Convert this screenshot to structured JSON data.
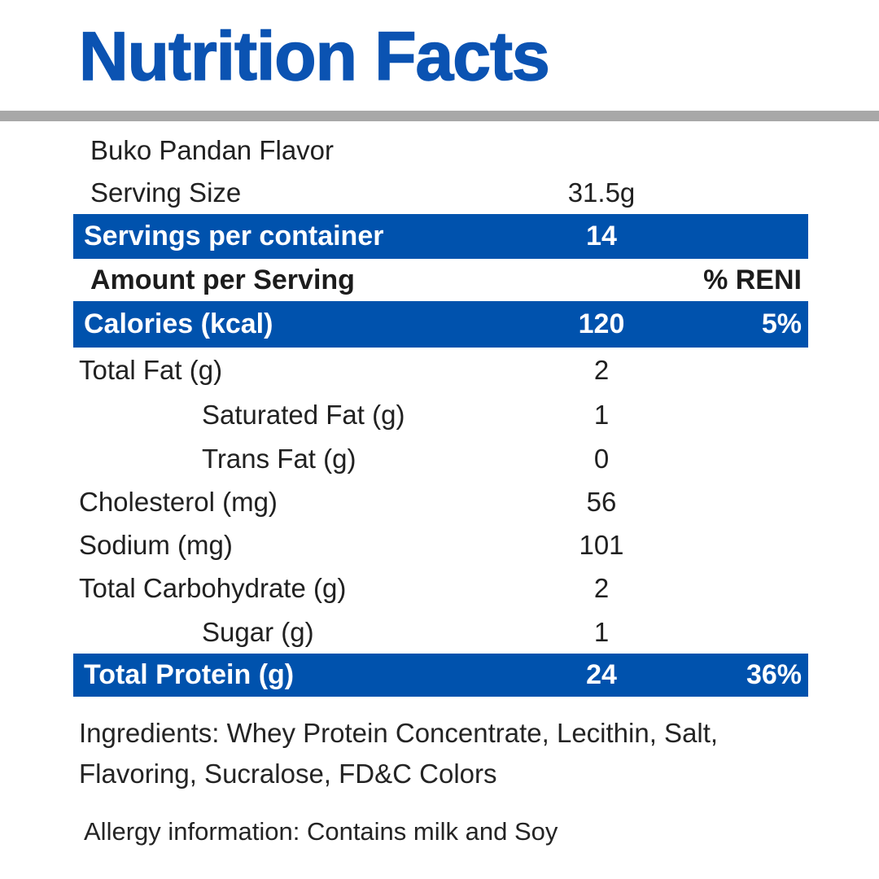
{
  "title": "Nutrition Facts",
  "colors": {
    "title_blue": "#0b53b2",
    "bar_blue": "#0052ad",
    "divider_gray": "#a8a8a8",
    "text_dark": "#212121"
  },
  "product": {
    "flavor": "Buko Pandan Flavor",
    "serving_size": {
      "label": "Serving Size",
      "value": "31.5g"
    },
    "servings_per_container": {
      "label": "Servings per container",
      "value": "14"
    }
  },
  "table": {
    "header": {
      "amount_label": "Amount per Serving",
      "percent_label": "% RENI"
    },
    "rows": [
      {
        "label": "Calories (kcal)",
        "value": "120",
        "percent": "5%",
        "style": "highlight",
        "indent": false
      },
      {
        "label": "Total Fat (g)",
        "value": "2",
        "percent": "",
        "style": "normal",
        "indent": false
      },
      {
        "label": "Saturated Fat (g)",
        "value": "1",
        "percent": "",
        "style": "normal",
        "indent": true
      },
      {
        "label": "Trans Fat (g)",
        "value": "0",
        "percent": "",
        "style": "normal",
        "indent": true
      },
      {
        "label": "Cholesterol (mg)",
        "value": "56",
        "percent": "",
        "style": "normal",
        "indent": false
      },
      {
        "label": "Sodium (mg)",
        "value": "101",
        "percent": "",
        "style": "normal",
        "indent": false
      },
      {
        "label": "Total Carbohydrate (g)",
        "value": "2",
        "percent": "",
        "style": "normal",
        "indent": false
      },
      {
        "label": "Sugar (g)",
        "value": "1",
        "percent": "",
        "style": "normal",
        "indent": true
      },
      {
        "label": "Total Protein (g)",
        "value": "24",
        "percent": "36%",
        "style": "highlight",
        "indent": false
      }
    ]
  },
  "footnotes": {
    "ingredients": "Ingredients: Whey Protein Concentrate, Lecithin, Salt,\nFlavoring, Sucralose, FD&C Colors",
    "allergy": "Allergy information: Contains milk and Soy"
  }
}
